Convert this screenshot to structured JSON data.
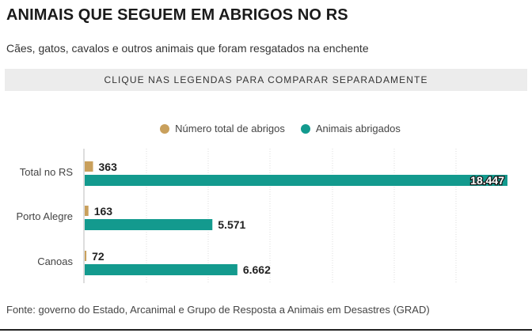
{
  "header": {
    "title": "ANIMAIS QUE SEGUEM EM ABRIGOS NO RS",
    "subtitle": "Cães, gatos, cavalos e outros animais que foram resgatados na enchente",
    "banner": "CLIQUE NAS LEGENDAS PARA COMPARAR SEPARADAMENTE"
  },
  "footer": {
    "source": "Fonte: governo do Estado, Arcanimal e Grupo de Resposta a Animais em Desastres (GRAD)"
  },
  "chart_data": {
    "type": "bar",
    "orientation": "horizontal",
    "title": "ANIMAIS QUE SEGUEM EM ABRIGOS NO RS",
    "subtitle": "Cães, gatos, cavalos e outros animais que foram resgatados na enchente",
    "categories": [
      "Total no RS",
      "Porto Alegre",
      "Canoas"
    ],
    "series": [
      {
        "name": "Número total de abrigos",
        "color": "#c9a05c",
        "values": [
          363,
          163,
          72
        ],
        "labels": [
          "363",
          "163",
          "72"
        ]
      },
      {
        "name": "Animais abrigados",
        "color": "#139a8e",
        "values": [
          18447,
          5571,
          6662
        ],
        "labels": [
          "18.447",
          "5.571",
          "6.662"
        ]
      }
    ],
    "xlim": [
      0,
      18447
    ],
    "grid": true,
    "legend": "top-center"
  }
}
